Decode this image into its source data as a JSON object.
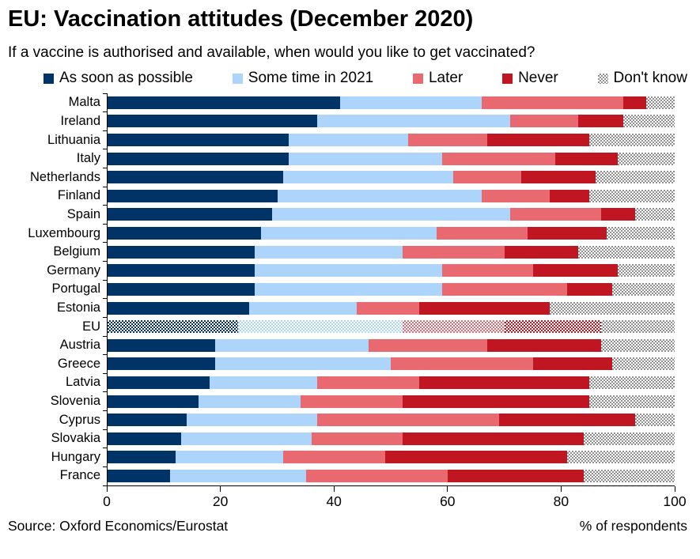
{
  "header": {
    "title": "EU: Vaccination attitudes (December 2020)",
    "subtitle": "If a vaccine is authorised and available, when would you like to get vaccinated?"
  },
  "chart_data": {
    "type": "bar",
    "stacked": true,
    "orientation": "horizontal",
    "title": "EU: Vaccination attitudes (December 2020)",
    "xlabel": "% of respondents",
    "xlim": [
      0,
      100
    ],
    "xticks": [
      0,
      20,
      40,
      60,
      80,
      100
    ],
    "grid": false,
    "legend_position": "top",
    "highlighted_category": "EU",
    "highlight_style": "checker-hatched",
    "categories": [
      "Malta",
      "Ireland",
      "Lithuania",
      "Italy",
      "Netherlands",
      "Finland",
      "Spain",
      "Luxembourg",
      "Belgium",
      "Germany",
      "Portugal",
      "Estonia",
      "EU",
      "Austria",
      "Greece",
      "Latvia",
      "Slovenia",
      "Cyprus",
      "Slovakia",
      "Hungary",
      "France"
    ],
    "series": [
      {
        "name": "As soon as possible",
        "color": "#003366",
        "pattern": "solid",
        "values": [
          41,
          37,
          32,
          32,
          31,
          30,
          29,
          27,
          26,
          26,
          26,
          25,
          23,
          19,
          19,
          18,
          16,
          14,
          13,
          12,
          11
        ]
      },
      {
        "name": "Some time in 2021",
        "color": "#ADD4FB",
        "pattern": "solid",
        "values": [
          25,
          34,
          21,
          27,
          30,
          36,
          42,
          31,
          26,
          33,
          33,
          19,
          29,
          27,
          31,
          19,
          18,
          23,
          23,
          19,
          24
        ]
      },
      {
        "name": "Later",
        "color": "#E8696F",
        "pattern": "solid",
        "values": [
          25,
          12,
          14,
          20,
          12,
          12,
          16,
          16,
          18,
          16,
          22,
          11,
          18,
          21,
          25,
          18,
          18,
          32,
          16,
          18,
          25
        ]
      },
      {
        "name": "Never",
        "color": "#C01622",
        "pattern": "solid",
        "values": [
          4,
          8,
          18,
          11,
          13,
          7,
          6,
          14,
          13,
          15,
          8,
          23,
          17,
          20,
          14,
          30,
          33,
          24,
          32,
          32,
          24
        ]
      },
      {
        "name": "Don't know",
        "color": "#8F8F8F",
        "pattern": "checker",
        "values": [
          5,
          9,
          15,
          10,
          14,
          15,
          7,
          12,
          17,
          10,
          11,
          22,
          13,
          13,
          11,
          15,
          15,
          7,
          16,
          19,
          16
        ]
      }
    ]
  },
  "footer": {
    "source": "Source: Oxford Economics/Eurostat",
    "xaxis_label": "% of respondents"
  }
}
